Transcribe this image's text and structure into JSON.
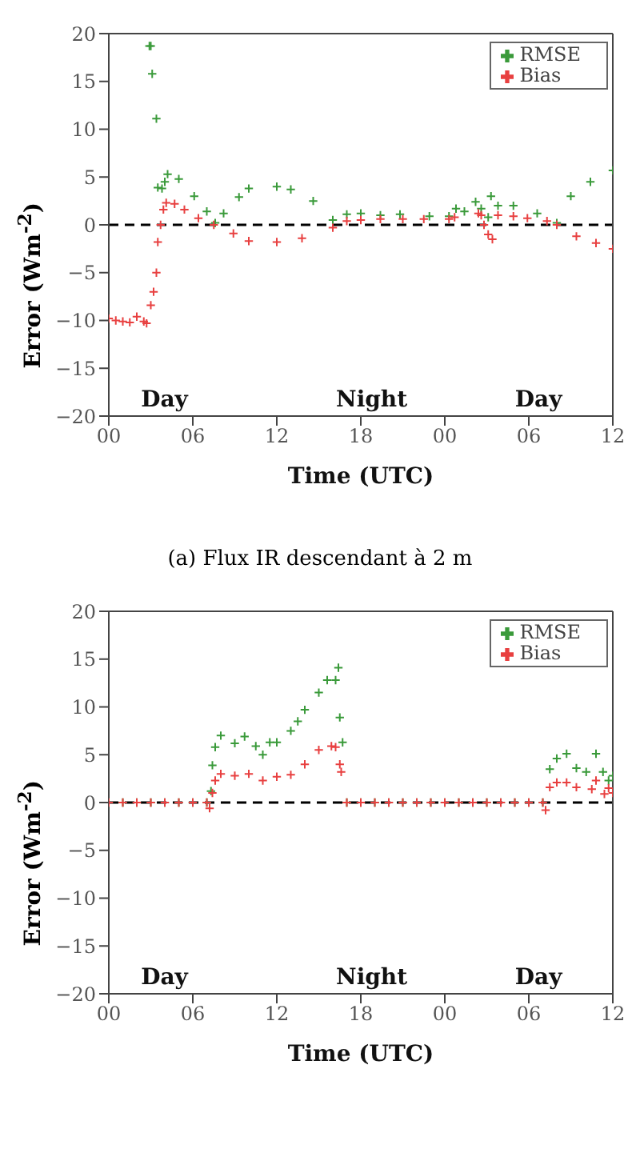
{
  "chart_data": [
    {
      "type": "scatter",
      "xlabel": "Time (UTC)",
      "ylabel": "Error (Wm$^{-2}$)",
      "xlim": [
        0,
        36
      ],
      "xticks": [
        {
          "value": 0,
          "label": "00"
        },
        {
          "value": 6,
          "label": "06"
        },
        {
          "value": 12,
          "label": "12"
        },
        {
          "value": 18,
          "label": "18"
        },
        {
          "value": 24,
          "label": "00"
        },
        {
          "value": 30,
          "label": "06"
        },
        {
          "value": 36,
          "label": "12"
        }
      ],
      "ylim": [
        -20,
        20
      ],
      "yticks": [
        -20,
        -15,
        -10,
        -5,
        0,
        5,
        10,
        15,
        20
      ],
      "marker": "cross",
      "legend": "top right",
      "grid": false,
      "ref_lines": [
        {
          "axis": "y",
          "value": 0,
          "color": "#000000",
          "line_style": "dashed"
        }
      ],
      "annotations": [
        "Day",
        "Night",
        "Day",
        "(a) Flux IR descendant à 2 m"
      ],
      "series": [
        {
          "name": "RMSE",
          "color": "#3a9a3a",
          "x": [
            2.9,
            3,
            3.1,
            3.4,
            3.5,
            3.8,
            4,
            4.2,
            5,
            6.1,
            7,
            7.6,
            8.2,
            9.3,
            10,
            12,
            13,
            14.6,
            16,
            17,
            18,
            19.4,
            20.8,
            22.9,
            24.3,
            24.8,
            25.4,
            26.2,
            26.6,
            27.1,
            27.3,
            27.8,
            28.9,
            30.6,
            32,
            33,
            34.4,
            36
          ],
          "values": [
            18.7,
            18.7,
            15.8,
            11.1,
            3.9,
            3.8,
            4.5,
            5.3,
            4.8,
            3,
            1.4,
            0.2,
            1.2,
            2.9,
            3.8,
            4,
            3.7,
            2.5,
            0.5,
            1.1,
            1.2,
            1,
            1.1,
            0.9,
            0.9,
            1.7,
            1.4,
            2.4,
            1.7,
            0.8,
            3,
            2,
            2,
            1.2,
            0.2,
            3,
            4.5,
            5.7
          ]
        },
        {
          "name": "Bias",
          "color": "#e84040",
          "x": [
            0,
            0.5,
            1,
            1.5,
            2,
            2.5,
            2.7,
            3,
            3.2,
            3.4,
            3.5,
            3.7,
            3.9,
            4.1,
            4.7,
            5.4,
            6.4,
            7.5,
            8.9,
            10,
            12,
            13.8,
            16,
            17,
            18,
            19.4,
            21,
            22.5,
            24.3,
            24.7,
            26.4,
            26.6,
            26.8,
            27.1,
            27.4,
            27.8,
            28.9,
            29.9,
            31.3,
            32,
            33.4,
            34.8,
            36
          ],
          "values": [
            -9.8,
            -10,
            -10.1,
            -10.2,
            -9.6,
            -10.1,
            -10.3,
            -8.4,
            -7,
            -5,
            -1.8,
            0,
            1.6,
            2.3,
            2.2,
            1.6,
            0.7,
            0,
            -0.9,
            -1.7,
            -1.8,
            -1.4,
            -0.3,
            0.4,
            0.5,
            0.6,
            0.6,
            0.6,
            0.6,
            0.8,
            1.2,
            1,
            0,
            -1,
            -1.5,
            1,
            0.9,
            0.7,
            0.4,
            0,
            -1.2,
            -1.9,
            -2.5
          ]
        }
      ]
    },
    {
      "type": "scatter",
      "xlabel": "Time (UTC)",
      "ylabel": "Error (Wm$^{-2}$)",
      "xlim": [
        0,
        36
      ],
      "xticks": [
        {
          "value": 0,
          "label": "00"
        },
        {
          "value": 6,
          "label": "06"
        },
        {
          "value": 12,
          "label": "12"
        },
        {
          "value": 18,
          "label": "18"
        },
        {
          "value": 24,
          "label": "00"
        },
        {
          "value": 30,
          "label": "06"
        },
        {
          "value": 36,
          "label": "12"
        }
      ],
      "ylim": [
        -20,
        20
      ],
      "yticks": [
        -20,
        -15,
        -10,
        -5,
        0,
        5,
        10,
        15,
        20
      ],
      "marker": "cross",
      "legend": "top right",
      "grid": false,
      "ref_lines": [
        {
          "axis": "y",
          "value": 0,
          "color": "#000000",
          "line_style": "dashed"
        }
      ],
      "annotations": [
        "Day",
        "Night",
        "Day"
      ],
      "series": [
        {
          "name": "RMSE",
          "color": "#3a9a3a",
          "x": [
            0,
            1,
            2,
            3,
            4,
            5,
            6,
            7,
            7.3,
            7.4,
            7.6,
            8,
            9,
            9.7,
            10.5,
            11,
            11.5,
            12,
            13,
            13.5,
            14,
            15,
            15.6,
            16.2,
            16.4,
            16.5,
            16.7,
            17,
            18,
            19,
            20,
            21,
            22,
            23,
            24,
            25,
            26,
            27,
            28,
            29,
            30,
            31,
            31.5,
            32,
            32.7,
            33.4,
            34.1,
            34.8,
            35.3,
            35.7,
            36
          ],
          "values": [
            0,
            0,
            0,
            0,
            0,
            0,
            0,
            0,
            1.2,
            3.9,
            5.8,
            7,
            6.2,
            6.9,
            5.9,
            5,
            6.3,
            6.3,
            7.5,
            8.5,
            9.7,
            11.5,
            12.8,
            12.8,
            14.1,
            8.9,
            6.3,
            0,
            0,
            0,
            0,
            0,
            0,
            0,
            0,
            0,
            0,
            0,
            0,
            0,
            0,
            0,
            3.5,
            4.6,
            5.1,
            3.6,
            3.2,
            5.1,
            3.2,
            2.3,
            2.8
          ]
        },
        {
          "name": "Bias",
          "color": "#e84040",
          "x": [
            0,
            1,
            2,
            3,
            4,
            5,
            6,
            7,
            7.2,
            7.4,
            7.6,
            8,
            9,
            10,
            11,
            12,
            13,
            14,
            15,
            15.9,
            16.2,
            16.5,
            16.6,
            17,
            18,
            19,
            20,
            21,
            22,
            23,
            24,
            25,
            26,
            27,
            28,
            29,
            30,
            31,
            31.2,
            31.5,
            32,
            32.7,
            33.4,
            34.5,
            34.8,
            35.4,
            35.7,
            36
          ],
          "values": [
            0,
            0,
            0,
            0,
            0,
            0,
            0,
            0,
            -0.6,
            1,
            2.3,
            3,
            2.8,
            3,
            2.3,
            2.7,
            2.9,
            4,
            5.5,
            5.9,
            5.8,
            4,
            3.2,
            0,
            0,
            0,
            0,
            0,
            0,
            0,
            0,
            0,
            0,
            0,
            0,
            0,
            0,
            0,
            -0.8,
            1.6,
            2.1,
            2.1,
            1.6,
            1.4,
            2.3,
            0.9,
            1.5,
            1
          ]
        }
      ]
    }
  ]
}
